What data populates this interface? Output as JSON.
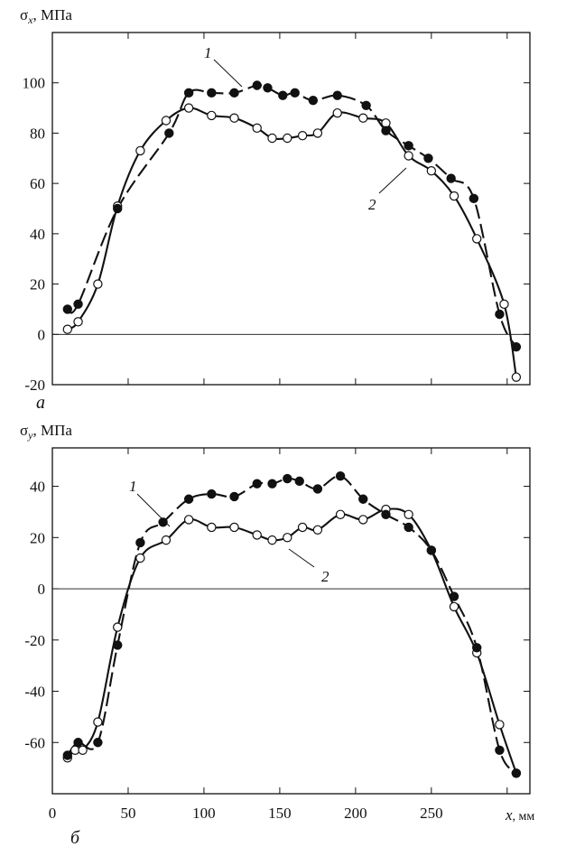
{
  "figure": {
    "panels": [
      {
        "id": "a",
        "panel_label": "а",
        "ylabel_symbol": "σ",
        "ylabel_subscript": "x",
        "ylabel_unit": ", МПа",
        "curve_labels": [
          "1",
          "2"
        ],
        "xlabel_symbol": "",
        "xlabel_unit": ""
      },
      {
        "id": "b",
        "panel_label": "б",
        "ylabel_symbol": "σ",
        "ylabel_subscript": "y",
        "ylabel_unit": ", МПа",
        "curve_labels": [
          "1",
          "2"
        ],
        "xlabel_symbol": "x",
        "xlabel_unit": ", мм"
      }
    ]
  },
  "chart_data": [
    {
      "type": "scatter",
      "title": "",
      "xlabel": "",
      "ylabel": "σx, МПа",
      "xlim": [
        0,
        315
      ],
      "ylim": [
        -20,
        120
      ],
      "xticks": [
        0,
        50,
        100,
        150,
        200,
        250,
        300
      ],
      "xtick_labels": [],
      "yticks": [
        -20,
        0,
        20,
        40,
        60,
        80,
        100
      ],
      "ytick_labels": [
        "-20",
        "0",
        "20",
        "40",
        "60",
        "80",
        "100"
      ],
      "zero_line": true,
      "grid": false,
      "series": [
        {
          "name": "1",
          "marker": "filled-circle",
          "line": "dashed",
          "x": [
            10,
            17,
            43,
            77,
            90,
            105,
            120,
            135,
            142,
            152,
            160,
            172,
            188,
            207,
            220,
            235,
            248,
            263,
            278,
            295,
            306
          ],
          "y": [
            10,
            12,
            50,
            80,
            96,
            96,
            96,
            99,
            98,
            95,
            96,
            93,
            95,
            91,
            81,
            75,
            70,
            62,
            54,
            8,
            -5
          ]
        },
        {
          "name": "2",
          "marker": "open-circle",
          "line": "solid",
          "x": [
            10,
            17,
            30,
            43,
            58,
            75,
            90,
            105,
            120,
            135,
            145,
            155,
            165,
            175,
            188,
            205,
            220,
            235,
            250,
            265,
            280,
            298,
            306
          ],
          "y": [
            2,
            5,
            20,
            51,
            73,
            85,
            90,
            87,
            86,
            82,
            78,
            78,
            79,
            80,
            88,
            86,
            84,
            71,
            65,
            55,
            38,
            12,
            -17
          ]
        }
      ]
    },
    {
      "type": "scatter",
      "title": "",
      "xlabel": "x, мм",
      "ylabel": "σy, МПа",
      "xlim": [
        0,
        315
      ],
      "ylim": [
        -80,
        55
      ],
      "xticks": [
        0,
        50,
        100,
        150,
        200,
        250,
        300
      ],
      "xtick_labels": [
        "0",
        "50",
        "100",
        "150",
        "200",
        "250"
      ],
      "yticks": [
        -60,
        -40,
        -20,
        0,
        20,
        40
      ],
      "ytick_labels": [
        "-60",
        "-40",
        "-20",
        "0",
        "20",
        "40"
      ],
      "zero_line": true,
      "grid": false,
      "series": [
        {
          "name": "1",
          "marker": "filled-circle",
          "line": "dashed",
          "x": [
            10,
            17,
            30,
            43,
            58,
            73,
            90,
            105,
            120,
            135,
            145,
            155,
            163,
            175,
            190,
            205,
            220,
            235,
            250,
            265,
            280,
            295,
            306
          ],
          "y": [
            -65,
            -60,
            -60,
            -22,
            18,
            26,
            35,
            37,
            36,
            41,
            41,
            43,
            42,
            39,
            44,
            35,
            29,
            24,
            15,
            -3,
            -23,
            -63,
            -72
          ]
        },
        {
          "name": "2",
          "marker": "open-circle",
          "line": "solid",
          "x": [
            10,
            15,
            20,
            30,
            43,
            58,
            75,
            90,
            105,
            120,
            135,
            145,
            155,
            165,
            175,
            190,
            205,
            220,
            235,
            250,
            265,
            280,
            295,
            306
          ],
          "y": [
            -66,
            -63,
            -63,
            -52,
            -15,
            12,
            19,
            27,
            24,
            24,
            21,
            19,
            20,
            24,
            23,
            29,
            27,
            31,
            29,
            15,
            -7,
            -25,
            -53,
            -72
          ]
        }
      ]
    }
  ]
}
